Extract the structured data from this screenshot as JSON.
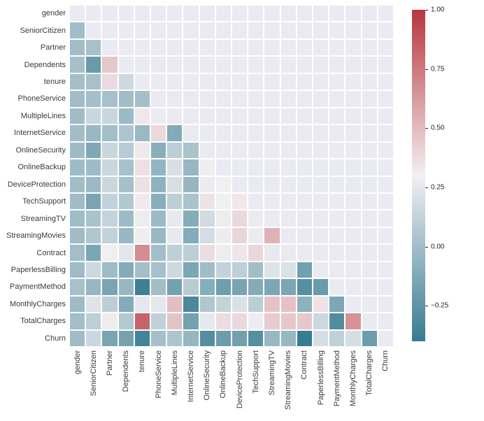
{
  "chart_data": {
    "type": "heatmap",
    "title": "",
    "description": "Lower-triangle correlation heatmap of telco customer churn features (upper triangle and diagonal masked)",
    "labels": [
      "gender",
      "SeniorCitizen",
      "Partner",
      "Dependents",
      "tenure",
      "PhoneService",
      "MultipleLines",
      "InternetService",
      "OnlineSecurity",
      "OnlineBackup",
      "DeviceProtection",
      "TechSupport",
      "StreamingTV",
      "StreamingMovies",
      "Contract",
      "PaperlessBilling",
      "PaymentMethod",
      "MonthlyCharges",
      "TotalCharges",
      "Churn"
    ],
    "lower_triangle": [
      [],
      [
        -0.002
      ],
      [
        -0.002,
        0.017
      ],
      [
        0.01,
        -0.211,
        0.452
      ],
      [
        0.005,
        0.017,
        0.38,
        0.16
      ],
      [
        -0.006,
        0.009,
        0.018,
        -0.001,
        0.008
      ],
      [
        -0.009,
        0.143,
        0.142,
        -0.025,
        0.332,
        0.279
      ],
      [
        -0.001,
        -0.033,
        0.001,
        0.044,
        -0.03,
        0.387,
        -0.113
      ],
      [
        -0.017,
        -0.129,
        0.143,
        0.081,
        0.328,
        -0.092,
        0.098,
        0.033
      ],
      [
        -0.013,
        -0.014,
        0.142,
        0.024,
        0.361,
        -0.052,
        0.202,
        -0.04,
        0.284
      ],
      [
        -0.002,
        -0.022,
        0.153,
        0.014,
        0.361,
        -0.071,
        0.201,
        -0.043,
        0.275,
        0.303
      ],
      [
        -0.009,
        -0.151,
        0.12,
        0.063,
        0.325,
        -0.096,
        0.1,
        0.032,
        0.354,
        0.294,
        0.333
      ],
      [
        -0.008,
        0.028,
        0.124,
        -0.016,
        0.28,
        -0.022,
        0.258,
        -0.107,
        0.176,
        0.282,
        0.39,
        0.278
      ],
      [
        -0.01,
        0.047,
        0.118,
        -0.038,
        0.286,
        -0.033,
        0.259,
        -0.113,
        0.187,
        0.274,
        0.402,
        0.279,
        0.533
      ],
      [
        0.0,
        -0.142,
        0.294,
        0.243,
        0.671,
        0.002,
        0.107,
        0.1,
        0.374,
        0.281,
        0.338,
        0.394,
        0.258,
        0.262
      ],
      [
        -0.012,
        0.156,
        -0.014,
        -0.111,
        0.006,
        0.017,
        0.164,
        -0.139,
        -0.004,
        0.127,
        0.104,
        -0.002,
        0.224,
        0.212,
        -0.177
      ],
      [
        0.017,
        -0.038,
        -0.154,
        -0.04,
        -0.37,
        0.003,
        -0.164,
        0.083,
        -0.101,
        -0.187,
        -0.151,
        -0.11,
        -0.14,
        -0.142,
        -0.281,
        -0.209
      ],
      [
        -0.014,
        0.22,
        0.097,
        -0.113,
        0.248,
        0.248,
        0.49,
        -0.323,
        0.054,
        0.126,
        0.21,
        0.096,
        0.47,
        0.475,
        -0.074,
        0.352,
        -0.135
      ],
      [
        0.0,
        0.103,
        0.319,
        0.065,
        0.826,
        0.113,
        0.469,
        -0.175,
        0.253,
        0.376,
        0.389,
        0.283,
        0.44,
        0.449,
        0.45,
        0.158,
        -0.294,
        0.651
      ],
      [
        -0.009,
        0.151,
        -0.15,
        -0.164,
        -0.352,
        0.012,
        0.04,
        -0.047,
        -0.289,
        -0.195,
        -0.178,
        -0.282,
        -0.037,
        -0.038,
        -0.397,
        0.192,
        0.107,
        0.193,
        -0.199
      ]
    ],
    "colormap": {
      "vmin": -0.4,
      "vmax": 1.0,
      "neg": "#367b90",
      "mid": "#f2f0f3",
      "pos": "#b8363e"
    },
    "colorbar": {
      "tick_values": [
        1.0,
        0.75,
        0.5,
        0.25,
        0.0,
        -0.25
      ],
      "tick_labels": [
        "1.00",
        "0.75",
        "0.50",
        "0.25",
        "0.00",
        "−0.25"
      ],
      "position": "right"
    },
    "style": {
      "figure_bg": "#ffffff",
      "axes_bg": "#eaeaf2",
      "gridline_color": "#ffffff",
      "tick_label_color": "#3a3a3a"
    },
    "grid": true,
    "legend": false
  }
}
